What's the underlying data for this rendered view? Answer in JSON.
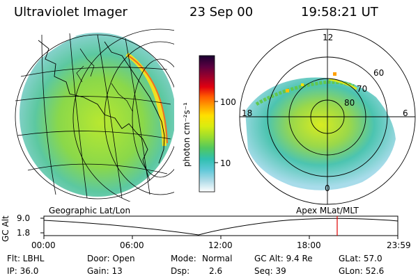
{
  "header": {
    "instrument": "Ultraviolet Imager",
    "date": "23 Sep 00",
    "time": "19:58:21 UT"
  },
  "colorbar": {
    "unit_label": "photon cm⁻²s⁻¹",
    "ticks": [
      "100",
      "10"
    ],
    "colors": [
      "#1a0030",
      "#5a0040",
      "#a0002a",
      "#e00010",
      "#ff5a00",
      "#ffa000",
      "#ffe000",
      "#e8f000",
      "#b8e820",
      "#80d840",
      "#40c870",
      "#30c0b0",
      "#60c8d8",
      "#a0d8e8",
      "#d8eef0",
      "#ffffff"
    ]
  },
  "left_panel": {
    "label": "Geographic Lat/Lon"
  },
  "right_panel": {
    "label": "Apex MLat/MLT",
    "mlt_labels": {
      "top": "12",
      "left": "18",
      "right": "6",
      "bottom": "0"
    },
    "lat_labels": [
      "60",
      "70",
      "80"
    ]
  },
  "timeline": {
    "ylabel": "GC Alt",
    "yticks": [
      "9.0",
      "1.8"
    ],
    "xticks": [
      "00:00",
      "06:00",
      "12:00",
      "18:00",
      "23:59"
    ],
    "current_marker_color": "#e00000"
  },
  "info": {
    "flt": "Flt: LBHL",
    "door": "Door: Open",
    "mode_label": "Mode:",
    "mode_value": "Normal",
    "gcalt": "GC Alt: 9.4 Re",
    "glat": "GLat: 57.0",
    "ip": "IP: 36.0",
    "gain": "Gain: 13",
    "dsp_label": "Dsp:",
    "dsp_value": "2.6",
    "seq": "Seq: 39",
    "glon": "GLon: 52.6"
  }
}
